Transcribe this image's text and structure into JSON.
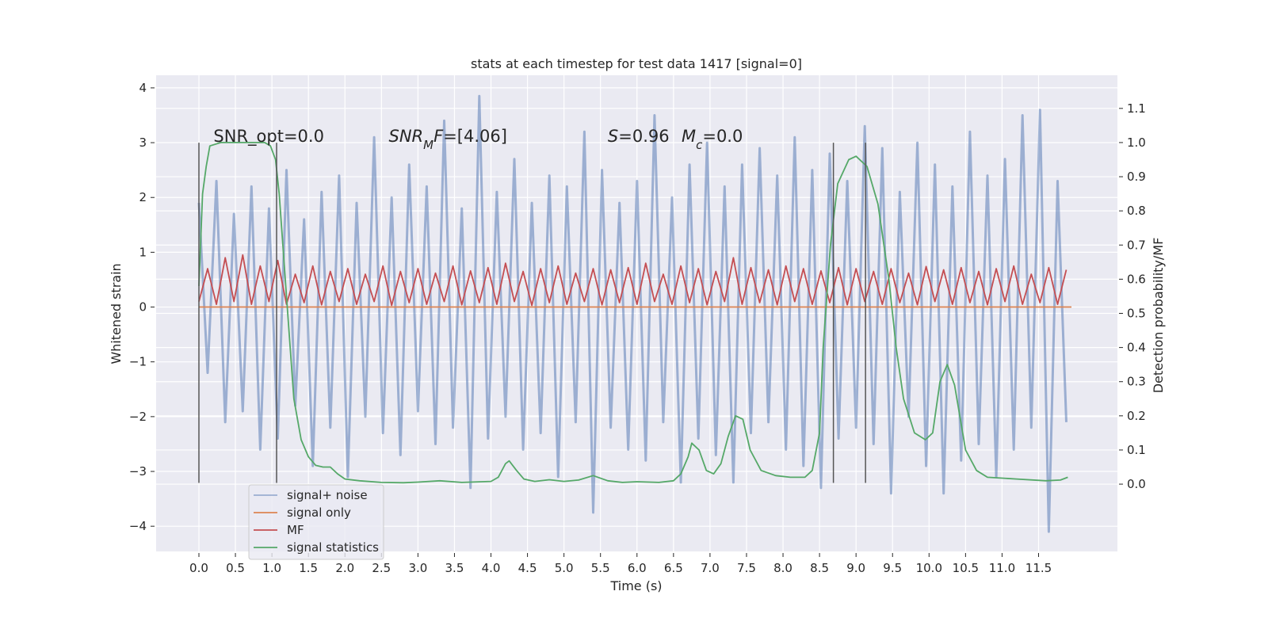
{
  "chart_data": {
    "type": "line",
    "title": "stats at each timestep for test data 1417 [signal=0]",
    "xlabel": "Time (s)",
    "ylabel": "Whitened strain",
    "y2label": "Detection probability/MF",
    "xlim": [
      -0.586,
      12.58
    ],
    "ylim": [
      -4.46,
      4.23
    ],
    "y2lim": [
      -0.197,
      1.197
    ],
    "grid": true,
    "xticks": [
      {
        "value": 0,
        "label": "0.0"
      },
      {
        "value": 0.5,
        "label": "0.5"
      },
      {
        "value": 1,
        "label": "1.0"
      },
      {
        "value": 1.5,
        "label": "1.5"
      },
      {
        "value": 2,
        "label": "2.0"
      },
      {
        "value": 2.5,
        "label": "2.5"
      },
      {
        "value": 3,
        "label": "3.0"
      },
      {
        "value": 3.5,
        "label": "3.5"
      },
      {
        "value": 4,
        "label": "4.0"
      },
      {
        "value": 4.5,
        "label": "4.5"
      },
      {
        "value": 5,
        "label": "5.0"
      },
      {
        "value": 5.5,
        "label": "5.5"
      },
      {
        "value": 6,
        "label": "6.0"
      },
      {
        "value": 6.5,
        "label": "6.5"
      },
      {
        "value": 7,
        "label": "7.0"
      },
      {
        "value": 7.5,
        "label": "7.5"
      },
      {
        "value": 8,
        "label": "8.0"
      },
      {
        "value": 8.5,
        "label": "8.5"
      },
      {
        "value": 9,
        "label": "9.0"
      },
      {
        "value": 9.5,
        "label": "9.5"
      },
      {
        "value": 10,
        "label": "10.0"
      },
      {
        "value": 10.5,
        "label": "10.5"
      },
      {
        "value": 11,
        "label": "11.0"
      },
      {
        "value": 11.5,
        "label": "11.5"
      }
    ],
    "yticks": [
      {
        "value": -4,
        "label": "−4"
      },
      {
        "value": -3,
        "label": "−3"
      },
      {
        "value": -2,
        "label": "−2"
      },
      {
        "value": -1,
        "label": "−1"
      },
      0,
      1,
      2,
      3,
      4
    ],
    "y2ticks": [
      {
        "value": 0,
        "label": "0.0"
      },
      {
        "value": 0.1,
        "label": "0.1"
      },
      {
        "value": 0.2,
        "label": "0.2"
      },
      {
        "value": 0.3,
        "label": "0.3"
      },
      {
        "value": 0.4,
        "label": "0.4"
      },
      {
        "value": 0.5,
        "label": "0.5"
      },
      {
        "value": 0.6,
        "label": "0.6"
      },
      {
        "value": 0.7,
        "label": "0.7"
      },
      {
        "value": 0.8,
        "label": "0.8"
      },
      {
        "value": 0.9,
        "label": "0.9"
      },
      {
        "value": 1.0,
        "label": "1.0"
      },
      {
        "value": 1.1,
        "label": "1.1"
      }
    ],
    "vlines": {
      "x": [
        0,
        1.064,
        8.69,
        9.13
      ],
      "ymin": -3.21,
      "ymax": 3.0,
      "color": "#555555"
    },
    "annotations": [
      {
        "x": 0.2,
        "y": 3.0,
        "segments": [
          {
            "text": "SNR_opt=0.0"
          }
        ]
      },
      {
        "x": 2.6,
        "y": 3.0,
        "segments": [
          {
            "text": "SNR",
            "italic": true
          },
          {
            "text": "M",
            "italic": true,
            "sub": true
          },
          {
            "text": "F",
            "italic": true
          },
          {
            "text": "=[4.06]"
          }
        ]
      },
      {
        "x": 5.6,
        "y": 3.0,
        "segments": [
          {
            "text": "S",
            "italic": true
          },
          {
            "text": "=0.96"
          }
        ]
      },
      {
        "x": 6.61,
        "y": 3.0,
        "segments": [
          {
            "text": "M",
            "italic": true
          },
          {
            "text": "c",
            "italic": true,
            "sub": true
          },
          {
            "text": "=0.0"
          }
        ]
      }
    ],
    "series": [
      {
        "name": "signal+ noise",
        "color": "#4c72b0",
        "opacity": 0.5,
        "x": [
          0,
          0.12,
          0.24,
          0.36,
          0.48,
          0.6,
          0.72,
          0.84,
          0.96,
          1.08,
          1.2,
          1.32,
          1.44,
          1.56,
          1.68,
          1.8,
          1.92,
          2.04,
          2.16,
          2.28,
          2.4,
          2.52,
          2.64,
          2.76,
          2.88,
          3,
          3.12,
          3.24,
          3.36,
          3.48,
          3.6,
          3.72,
          3.84,
          3.96,
          4.08,
          4.2,
          4.32,
          4.44,
          4.56,
          4.68,
          4.8,
          4.92,
          5.04,
          5.16,
          5.28,
          5.4,
          5.52,
          5.64,
          5.76,
          5.88,
          6,
          6.12,
          6.24,
          6.36,
          6.48,
          6.6,
          6.72,
          6.84,
          6.96,
          7.08,
          7.2,
          7.32,
          7.44,
          7.56,
          7.68,
          7.8,
          7.92,
          8.04,
          8.16,
          8.28,
          8.4,
          8.52,
          8.64,
          8.76,
          8.88,
          9,
          9.12,
          9.24,
          9.36,
          9.48,
          9.6,
          9.72,
          9.84,
          9.96,
          10.08,
          10.2,
          10.32,
          10.44,
          10.56,
          10.68,
          10.8,
          10.92,
          11.04,
          11.16,
          11.28,
          11.4,
          11.52,
          11.64,
          11.76,
          11.88
        ],
        "values": [
          1.9,
          -1.2,
          2.3,
          -2.1,
          1.7,
          -1.9,
          2.2,
          -2.6,
          1.8,
          -2.4,
          2.5,
          -1.8,
          1.6,
          -2.9,
          2.1,
          -2.2,
          2.4,
          -3.1,
          1.9,
          -2.0,
          3.1,
          -2.3,
          2.0,
          -2.7,
          2.6,
          -1.9,
          2.2,
          -2.5,
          3.4,
          -2.2,
          1.8,
          -3.3,
          3.85,
          -2.4,
          2.1,
          -2.0,
          2.7,
          -2.6,
          1.9,
          -2.3,
          2.4,
          -3.1,
          2.2,
          -2.1,
          3.2,
          -3.75,
          2.5,
          -2.2,
          1.9,
          -2.6,
          2.3,
          -2.8,
          3.5,
          -2.1,
          2.0,
          -3.2,
          2.6,
          -2.4,
          3.0,
          -2.7,
          2.2,
          -3.2,
          2.6,
          -2.3,
          2.9,
          -2.1,
          2.4,
          -2.6,
          3.1,
          -2.9,
          2.5,
          -3.3,
          2.8,
          -2.4,
          2.3,
          -2.2,
          3.3,
          -2.5,
          2.9,
          -3.4,
          2.1,
          -2.0,
          3.0,
          -2.9,
          2.6,
          -3.4,
          2.2,
          -2.8,
          3.2,
          -2.5,
          2.4,
          -3.1,
          2.7,
          -2.6,
          3.5,
          -2.2,
          3.6,
          -4.1,
          2.3,
          -2.1
        ]
      },
      {
        "name": "signal only",
        "color": "#dd8452",
        "opacity": 1,
        "x": [
          0,
          11.95
        ],
        "values": [
          0,
          0
        ]
      },
      {
        "name": "MF",
        "color": "#c44e52",
        "opacity": 1,
        "x": [
          0,
          0.12,
          0.24,
          0.36,
          0.48,
          0.6,
          0.72,
          0.84,
          0.96,
          1.08,
          1.2,
          1.32,
          1.44,
          1.56,
          1.68,
          1.8,
          1.92,
          2.04,
          2.16,
          2.28,
          2.4,
          2.52,
          2.64,
          2.76,
          2.88,
          3,
          3.12,
          3.24,
          3.36,
          3.48,
          3.6,
          3.72,
          3.84,
          3.96,
          4.08,
          4.2,
          4.32,
          4.44,
          4.56,
          4.68,
          4.8,
          4.92,
          5.04,
          5.16,
          5.28,
          5.4,
          5.52,
          5.64,
          5.76,
          5.88,
          6,
          6.12,
          6.24,
          6.36,
          6.48,
          6.6,
          6.72,
          6.84,
          6.96,
          7.08,
          7.2,
          7.32,
          7.44,
          7.56,
          7.68,
          7.8,
          7.92,
          8.04,
          8.16,
          8.28,
          8.4,
          8.52,
          8.64,
          8.76,
          8.88,
          9,
          9.12,
          9.24,
          9.36,
          9.48,
          9.6,
          9.72,
          9.84,
          9.96,
          10.08,
          10.2,
          10.32,
          10.44,
          10.56,
          10.68,
          10.8,
          10.92,
          11.04,
          11.16,
          11.28,
          11.4,
          11.52,
          11.64,
          11.76,
          11.88
        ],
        "values": [
          0.1,
          0.7,
          0.05,
          0.9,
          0.1,
          0.95,
          0.05,
          0.75,
          0.1,
          0.85,
          0.05,
          0.6,
          0.08,
          0.75,
          0.04,
          0.65,
          0.1,
          0.7,
          0.05,
          0.6,
          0.1,
          0.75,
          0.03,
          0.65,
          0.08,
          0.7,
          0.05,
          0.62,
          0.1,
          0.75,
          0.04,
          0.66,
          0.08,
          0.72,
          0.05,
          0.8,
          0.1,
          0.65,
          0.03,
          0.7,
          0.08,
          0.75,
          0.05,
          0.62,
          0.1,
          0.7,
          0.04,
          0.68,
          0.08,
          0.72,
          0.05,
          0.8,
          0.1,
          0.6,
          0.05,
          0.75,
          0.08,
          0.7,
          0.04,
          0.65,
          0.1,
          0.9,
          0.05,
          0.72,
          0.08,
          0.68,
          0.04,
          0.75,
          0.1,
          0.7,
          0.05,
          0.66,
          0.08,
          0.72,
          0.04,
          0.7,
          0.1,
          0.65,
          0.05,
          0.7,
          0.08,
          0.62,
          0.04,
          0.74,
          0.1,
          0.68,
          0.05,
          0.72,
          0.08,
          0.65,
          0.04,
          0.7,
          0.1,
          0.75,
          0.05,
          0.6,
          0.08,
          0.72,
          0.05,
          0.68
        ]
      },
      {
        "name": "signal statistics",
        "color": "#55a868",
        "opacity": 1,
        "axis": "y2",
        "x": [
          0,
          0.05,
          0.1,
          0.15,
          0.3,
          0.5,
          0.7,
          0.9,
          0.98,
          1.05,
          1.1,
          1.2,
          1.3,
          1.4,
          1.5,
          1.6,
          1.7,
          1.8,
          1.9,
          2.0,
          2.2,
          2.5,
          2.8,
          3.0,
          3.3,
          3.6,
          4.0,
          4.1,
          4.2,
          4.25,
          4.35,
          4.45,
          4.6,
          4.8,
          5.0,
          5.2,
          5.4,
          5.6,
          5.8,
          6.0,
          6.3,
          6.5,
          6.6,
          6.7,
          6.75,
          6.85,
          6.95,
          7.05,
          7.15,
          7.25,
          7.35,
          7.45,
          7.55,
          7.7,
          7.9,
          8.1,
          8.3,
          8.4,
          8.5,
          8.55,
          8.65,
          8.75,
          8.9,
          9.0,
          9.15,
          9.3,
          9.45,
          9.55,
          9.65,
          9.8,
          9.95,
          10.05,
          10.15,
          10.25,
          10.35,
          10.5,
          10.65,
          10.8,
          11.2,
          11.6,
          11.8,
          11.9
        ],
        "values": [
          0.58,
          0.85,
          0.93,
          0.99,
          1.0,
          1.0,
          1.0,
          1.0,
          0.99,
          0.95,
          0.85,
          0.55,
          0.25,
          0.13,
          0.08,
          0.055,
          0.05,
          0.05,
          0.03,
          0.015,
          0.01,
          0.005,
          0.004,
          0.006,
          0.01,
          0.005,
          0.008,
          0.02,
          0.06,
          0.068,
          0.04,
          0.015,
          0.008,
          0.013,
          0.008,
          0.012,
          0.025,
          0.01,
          0.005,
          0.007,
          0.005,
          0.01,
          0.03,
          0.08,
          0.12,
          0.1,
          0.04,
          0.03,
          0.06,
          0.14,
          0.2,
          0.19,
          0.1,
          0.04,
          0.025,
          0.02,
          0.02,
          0.04,
          0.15,
          0.4,
          0.7,
          0.88,
          0.95,
          0.96,
          0.93,
          0.82,
          0.6,
          0.4,
          0.25,
          0.15,
          0.13,
          0.15,
          0.3,
          0.35,
          0.29,
          0.1,
          0.04,
          0.02,
          0.015,
          0.01,
          0.012,
          0.02
        ]
      }
    ]
  }
}
